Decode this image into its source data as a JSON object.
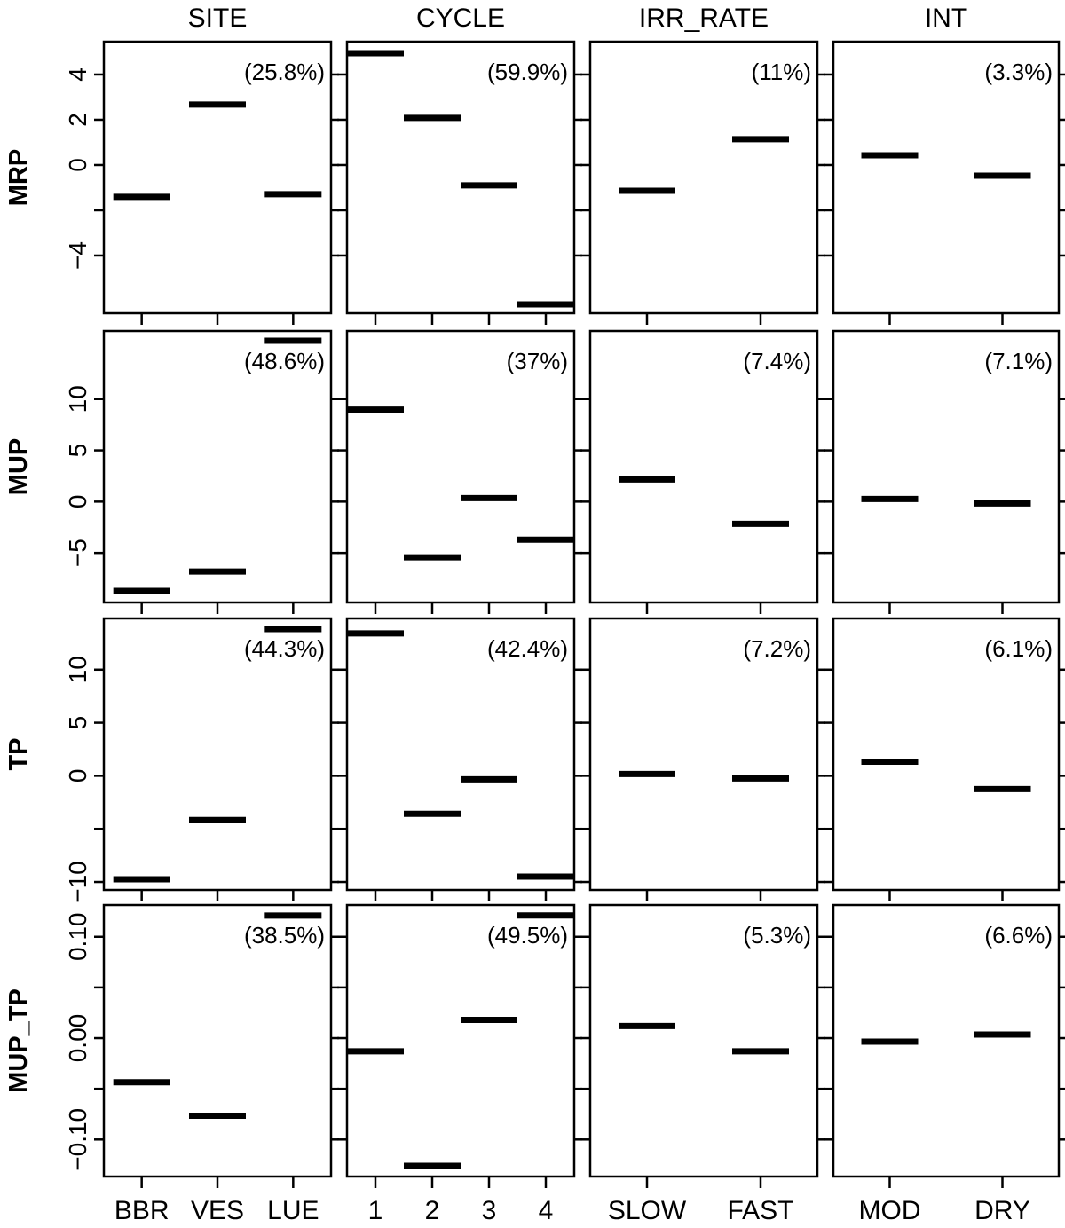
{
  "chart_data": [
    {
      "type": "segment",
      "ylabel": "MRP",
      "color": "#000000",
      "ylim": [
        -6.55,
        5.45
      ],
      "yticks": [
        {
          "value": -4,
          "label": "−4"
        },
        {
          "value": -2,
          "label": null
        },
        0,
        2,
        4
      ],
      "panels": [
        {
          "title": "SITE",
          "annotation": "(25.8%)",
          "values": [
            -1.41,
            2.67,
            -1.29
          ]
        },
        {
          "title": "CYCLE",
          "annotation": "(59.9%)",
          "values": [
            4.94,
            2.08,
            -0.9,
            -6.16
          ]
        },
        {
          "title": "IRR_RATE",
          "annotation": "(11%)",
          "values": [
            -1.14,
            1.14
          ]
        },
        {
          "title": "INT",
          "annotation": "(3.3%)",
          "values": [
            0.43,
            -0.47
          ]
        }
      ]
    },
    {
      "type": "segment",
      "ylabel": "MUP",
      "color": "#000000",
      "ylim": [
        -9.83,
        16.64
      ],
      "yticks": [
        {
          "value": -5,
          "label": "−5"
        },
        0,
        5,
        10
      ],
      "panels": [
        {
          "annotation": "(48.6%)",
          "values": [
            -8.71,
            -6.81,
            15.69
          ]
        },
        {
          "annotation": "(37%)",
          "values": [
            8.97,
            -5.43,
            0.34,
            -3.71
          ]
        },
        {
          "annotation": "(7.4%)",
          "values": [
            2.16,
            -2.16
          ]
        },
        {
          "annotation": "(7.1%)",
          "values": [
            0.26,
            -0.17
          ]
        }
      ]
    },
    {
      "type": "segment",
      "ylabel": "TP",
      "color": "#000000",
      "ylim": [
        -10.75,
        14.83
      ],
      "yticks": [
        {
          "value": -10,
          "label": "−10"
        },
        {
          "value": -5,
          "label": null
        },
        0,
        5,
        10
      ],
      "panels": [
        {
          "annotation": "(44.3%)",
          "values": [
            -9.75,
            -4.17,
            13.83
          ]
        },
        {
          "annotation": "(42.4%)",
          "values": [
            13.42,
            -3.58,
            -0.33,
            -9.5
          ]
        },
        {
          "annotation": "(7.2%)",
          "values": [
            0.17,
            -0.25
          ]
        },
        {
          "annotation": "(6.1%)",
          "values": [
            1.33,
            -1.25
          ]
        }
      ]
    },
    {
      "type": "segment",
      "ylabel": "MUP_TP",
      "color": "#000000",
      "ylim": [
        -0.1365,
        0.1313
      ],
      "yticks": [
        {
          "value": -0.1,
          "label": "−0.10"
        },
        {
          "value": -0.05,
          "label": null
        },
        {
          "value": 0,
          "label": "0.00"
        },
        {
          "value": 0.05,
          "label": null
        },
        {
          "value": 0.1,
          "label": "0.10"
        }
      ],
      "panels": [
        {
          "annotation": "(38.5%)",
          "values": [
            -0.0435,
            -0.0765,
            0.1209
          ],
          "categories": [
            "BBR",
            "VES",
            "LUE"
          ]
        },
        {
          "annotation": "(49.5%)",
          "values": [
            -0.013,
            -0.126,
            0.018,
            0.121
          ],
          "categories": [
            "1",
            "2",
            "3",
            "4"
          ]
        },
        {
          "annotation": "(5.3%)",
          "values": [
            0.012,
            -0.013
          ],
          "categories": [
            "SLOW",
            "FAST"
          ]
        },
        {
          "annotation": "(6.6%)",
          "values": [
            -0.0035,
            0.0035
          ],
          "categories": [
            "MOD",
            "DRY"
          ]
        }
      ]
    }
  ]
}
